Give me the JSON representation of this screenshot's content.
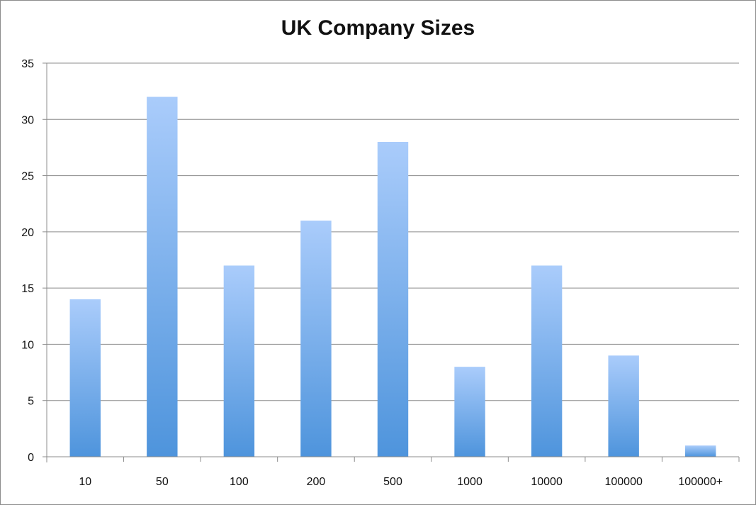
{
  "chart_data": {
    "type": "bar",
    "title": "UK Company Sizes",
    "xlabel": "",
    "ylabel": "",
    "categories": [
      "10",
      "50",
      "100",
      "200",
      "500",
      "1000",
      "10000",
      "100000",
      "100000+"
    ],
    "values": [
      14,
      32,
      17,
      21,
      28,
      8,
      17,
      9,
      1
    ],
    "ylim": [
      0,
      35
    ],
    "yticks": [
      0,
      5,
      10,
      15,
      20,
      25,
      30,
      35
    ],
    "grid": true,
    "legend": "none",
    "colors": {
      "bar_top": "#aaccfb",
      "bar_bottom": "#4e94dc",
      "grid": "#8c8c8c",
      "axis": "#8c8c8c"
    }
  }
}
